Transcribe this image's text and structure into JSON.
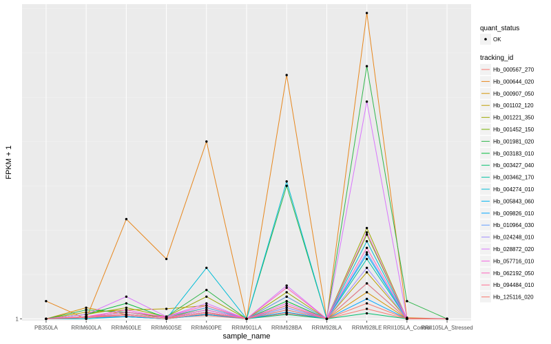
{
  "chart_data": {
    "type": "line",
    "title": "",
    "xlabel": "sample_name",
    "ylabel": "FPKM + 1",
    "y_ticks": [
      {
        "value": 1,
        "label": "1"
      }
    ],
    "ylim": [
      0.92,
      15.2
    ],
    "categories": [
      "PB350LA",
      "RRIM600LA",
      "RRIM600LE",
      "RRIM600SE",
      "RRIM600PE",
      "RRIM901LA",
      "RRIM928BA",
      "RRIM928LA",
      "RRIM928LE",
      "RRII105LA_Control",
      "RRII105LA_Stressed"
    ],
    "legend": {
      "quant_status_title": "quant_status",
      "quant_status_items": [
        "OK"
      ],
      "tracking_title": "tracking_id"
    },
    "series": [
      {
        "name": "Hb_000567_270",
        "color": "#F8766D",
        "values": [
          1.0,
          1.05,
          1.2,
          1.05,
          1.15,
          1.0,
          1.25,
          1.0,
          1.45,
          1.0,
          1.0
        ]
      },
      {
        "name": "Hb_000644_020",
        "color": "#E7861B",
        "values": [
          1.8,
          1.0,
          5.5,
          3.7,
          9.0,
          1.0,
          12.0,
          1.0,
          14.8,
          1.05,
          1.0
        ]
      },
      {
        "name": "Hb_000907_050",
        "color": "#D39200",
        "values": [
          1.0,
          1.5,
          1.2,
          1.05,
          1.4,
          1.0,
          1.3,
          1.0,
          2.2,
          1.0,
          1.0
        ]
      },
      {
        "name": "Hb_001102_120",
        "color": "#BB9D00",
        "values": [
          1.0,
          1.3,
          1.4,
          1.45,
          1.6,
          1.0,
          2.0,
          1.0,
          3.1,
          1.0,
          1.0
        ]
      },
      {
        "name": "Hb_001221_350",
        "color": "#9DA700",
        "values": [
          1.0,
          1.2,
          1.5,
          1.1,
          2.0,
          1.0,
          2.2,
          1.0,
          5.1,
          1.0,
          1.0
        ]
      },
      {
        "name": "Hb_001452_150",
        "color": "#74B000",
        "values": [
          1.0,
          1.1,
          1.3,
          1.05,
          1.5,
          1.0,
          1.6,
          1.0,
          4.8,
          1.0,
          1.0
        ]
      },
      {
        "name": "Hb_001981_020",
        "color": "#2EB64A",
        "values": [
          1.0,
          1.4,
          1.3,
          1.1,
          2.3,
          1.0,
          7.0,
          1.0,
          12.4,
          1.8,
          1.0
        ]
      },
      {
        "name": "Hb_003183_010",
        "color": "#00BA38",
        "values": [
          1.0,
          1.2,
          1.7,
          1.05,
          1.3,
          1.0,
          1.8,
          1.0,
          2.6,
          1.0,
          1.0
        ]
      },
      {
        "name": "Hb_003427_040",
        "color": "#00BE6C",
        "values": [
          1.0,
          1.05,
          1.1,
          1.0,
          1.2,
          1.0,
          1.2,
          1.0,
          1.25,
          1.0,
          1.0
        ]
      },
      {
        "name": "Hb_003462_170",
        "color": "#00C0A3",
        "values": [
          1.0,
          1.1,
          1.2,
          1.05,
          1.4,
          1.0,
          1.5,
          1.0,
          3.7,
          1.0,
          1.0
        ]
      },
      {
        "name": "Hb_004274_010",
        "color": "#00BCD6",
        "values": [
          1.0,
          1.0,
          1.1,
          1.0,
          3.3,
          1.0,
          7.2,
          1.0,
          4.5,
          1.0,
          1.0
        ]
      },
      {
        "name": "Hb_005843_060",
        "color": "#00B4EF",
        "values": [
          1.0,
          1.1,
          1.2,
          1.05,
          1.3,
          1.0,
          1.4,
          1.0,
          3.9,
          1.0,
          1.0
        ]
      },
      {
        "name": "Hb_009826_010",
        "color": "#00A5FF",
        "values": [
          1.0,
          1.05,
          1.1,
          1.0,
          1.2,
          1.0,
          1.3,
          1.0,
          1.9,
          1.0,
          1.0
        ]
      },
      {
        "name": "Hb_010964_030",
        "color": "#619CFF",
        "values": [
          1.0,
          1.1,
          1.3,
          1.1,
          1.5,
          1.0,
          2.0,
          1.0,
          4.0,
          1.0,
          1.0
        ]
      },
      {
        "name": "Hb_024248_010",
        "color": "#9F8CFF",
        "values": [
          1.0,
          1.1,
          1.2,
          1.05,
          1.3,
          1.0,
          1.5,
          1.0,
          3.3,
          1.0,
          1.0
        ]
      },
      {
        "name": "Hb_028872_020",
        "color": "#D874FD",
        "values": [
          1.0,
          1.2,
          2.0,
          1.1,
          1.7,
          1.0,
          2.5,
          1.0,
          10.8,
          1.0,
          1.0
        ]
      },
      {
        "name": "Hb_057716_010",
        "color": "#F564E3",
        "values": [
          1.0,
          1.1,
          1.4,
          1.05,
          1.4,
          1.0,
          1.7,
          1.0,
          4.9,
          1.0,
          1.0
        ]
      },
      {
        "name": "Hb_062192_050",
        "color": "#FF62BC",
        "values": [
          1.0,
          1.1,
          1.3,
          1.1,
          1.6,
          1.0,
          2.4,
          1.0,
          4.2,
          1.0,
          1.0
        ]
      },
      {
        "name": "Hb_094484_010",
        "color": "#FF6C90",
        "values": [
          1.0,
          1.1,
          1.2,
          1.05,
          1.3,
          1.0,
          1.6,
          1.0,
          2.6,
          1.0,
          1.0
        ]
      },
      {
        "name": "Hb_125116_020",
        "color": "#F8766D",
        "values": [
          1.0,
          1.05,
          1.15,
          1.0,
          1.25,
          1.0,
          1.4,
          1.0,
          1.7,
          1.0,
          1.0
        ]
      }
    ]
  }
}
